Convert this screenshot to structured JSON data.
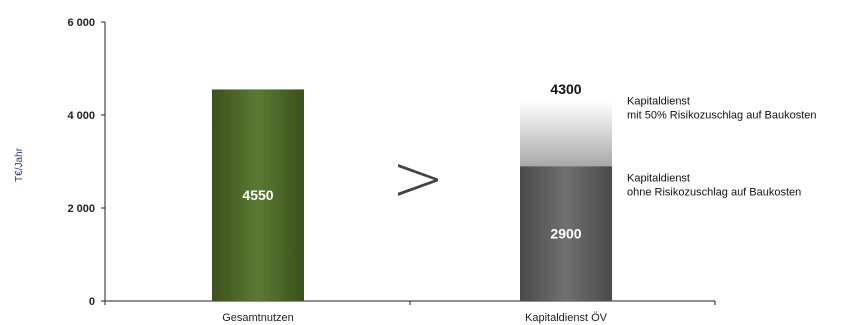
{
  "chart_data": {
    "type": "bar",
    "ylabel": "T€/Jahr",
    "ylim": [
      0,
      6000
    ],
    "yticks": [
      0,
      2000,
      4000,
      6000
    ],
    "ytick_labels": [
      "0",
      "2 000",
      "4 000",
      "6 000"
    ],
    "categories": [
      "Gesamtnutzen",
      "Kapitaldienst ÖV"
    ],
    "bars": [
      {
        "category": "Gesamtnutzen",
        "segments": [
          {
            "value": 4550,
            "color": "#4a6425",
            "label": "4550"
          }
        ]
      },
      {
        "category": "Kapitaldienst ÖV",
        "total_label": "4300",
        "segments": [
          {
            "value": 2900,
            "color": "#5f5f5f",
            "label": "2900"
          },
          {
            "value": 1400,
            "color": "#e6e6e6",
            "label": ""
          }
        ]
      }
    ],
    "comparison_symbol": ">",
    "annotations": [
      {
        "lines": [
          "Kapitaldienst",
          "mit 50% Risikozuschlag auf Baukosten"
        ]
      },
      {
        "lines": [
          "Kapitaldienst",
          "ohne Risikozuschlag auf Baukosten"
        ]
      }
    ],
    "grid": false
  }
}
